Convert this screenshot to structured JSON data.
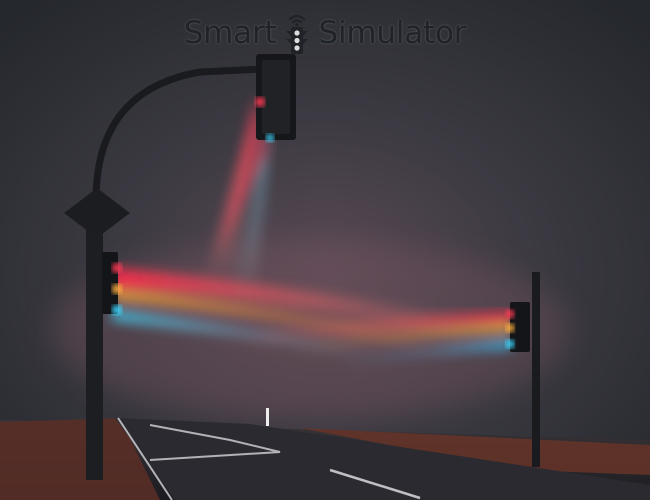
{
  "logo": {
    "word_left": "Smart",
    "word_right": "Simulator",
    "text_color": "#1f2226",
    "icon": "traffic-light-wifi-icon"
  },
  "scene": {
    "description_colors": {
      "fog": "#3a3c44",
      "sky_top": "#2a2d33",
      "beam_red": "#ff3a4a",
      "beam_amber": "#ff9a3a",
      "beam_cyan": "#3ad8ff",
      "grass": "#8a3a2a"
    }
  }
}
